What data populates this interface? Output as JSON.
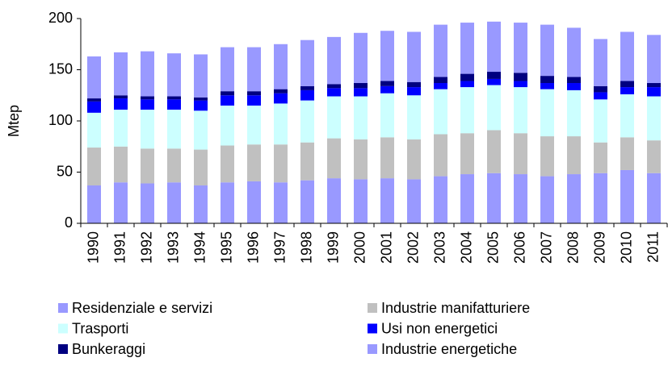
{
  "chart_data": {
    "type": "stacked_bar",
    "y_label": "Mtep",
    "categories": [
      "1990",
      "1991",
      "1992",
      "1993",
      "1994",
      "1995",
      "1996",
      "1997",
      "1998",
      "1999",
      "2000",
      "2001",
      "2002",
      "2003",
      "2004",
      "2005",
      "2006",
      "2007",
      "2008",
      "2009",
      "2010",
      "2011"
    ],
    "series": [
      {
        "name": "Residenziale e servizi",
        "color": "#9999ff",
        "values": [
          37,
          40,
          39,
          40,
          37,
          40,
          41,
          40,
          42,
          44,
          43,
          44,
          43,
          46,
          48,
          49,
          48,
          46,
          48,
          49,
          52,
          49
        ]
      },
      {
        "name": "Industrie manifatturiere",
        "color": "#c0c0c0",
        "values": [
          37,
          35,
          34,
          33,
          35,
          36,
          36,
          37,
          37,
          39,
          39,
          40,
          39,
          41,
          40,
          42,
          40,
          39,
          37,
          30,
          32,
          32
        ]
      },
      {
        "name": "Trasporti",
        "color": "#ccffff",
        "values": [
          34,
          36,
          38,
          38,
          38,
          39,
          38,
          40,
          41,
          41,
          42,
          43,
          43,
          44,
          45,
          44,
          45,
          46,
          45,
          42,
          42,
          43
        ]
      },
      {
        "name": "Usi non energetici",
        "color": "#0000ff",
        "values": [
          11,
          11,
          10,
          10,
          10,
          10,
          10,
          10,
          10,
          8,
          8,
          7,
          8,
          6,
          6,
          6,
          6,
          6,
          7,
          7,
          7,
          9
        ]
      },
      {
        "name": "Bunkeraggi",
        "color": "#000080",
        "values": [
          3,
          3,
          3,
          3,
          3,
          4,
          4,
          4,
          4,
          4,
          5,
          5,
          5,
          6,
          7,
          7,
          8,
          7,
          6,
          6,
          6,
          4
        ]
      },
      {
        "name": "Industrie energetiche",
        "color": "#9999ff",
        "values": [
          41,
          42,
          44,
          42,
          42,
          43,
          43,
          44,
          45,
          46,
          49,
          49,
          49,
          51,
          50,
          49,
          49,
          50,
          48,
          46,
          48,
          47
        ]
      }
    ],
    "ylim": [
      0,
      200
    ],
    "yticks": [
      0,
      50,
      100,
      150,
      200
    ],
    "grid": false
  }
}
